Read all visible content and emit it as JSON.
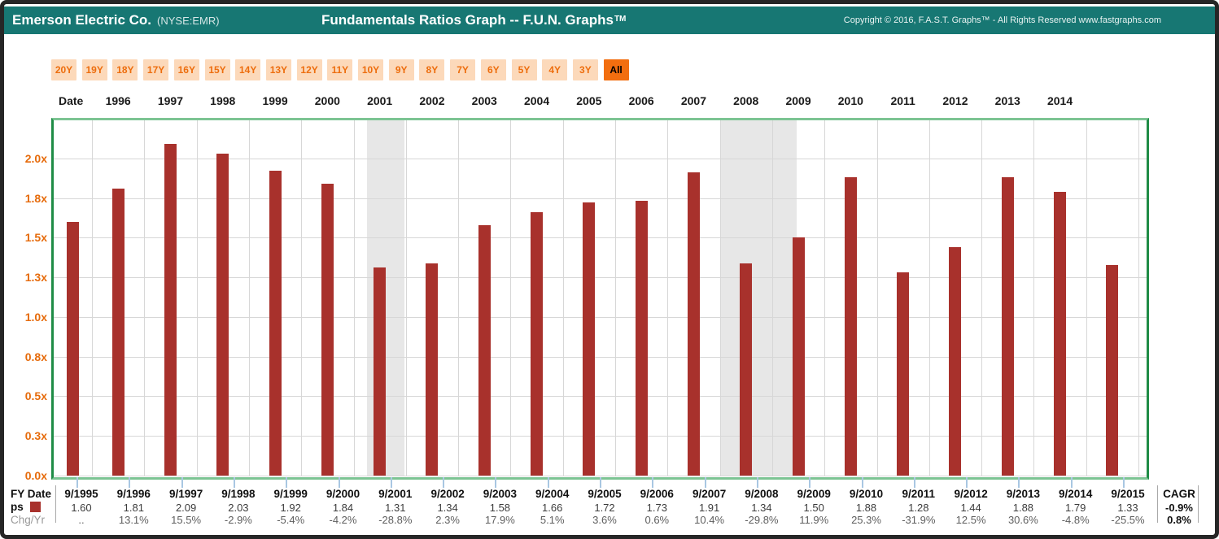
{
  "header": {
    "company": "Emerson Electric Co.",
    "ticker": "(NYSE:EMR)",
    "title": "Fundamentals Ratios Graph -- F.U.N. Graphs",
    "title_tm": "TM",
    "copyright": "Copyright © 2016, F.A.S.T. Graphs™ - All Rights Reserved www.fastgraphs.com"
  },
  "toolbar": {
    "buttons": [
      {
        "label": "20Y",
        "active": false
      },
      {
        "label": "19Y",
        "active": false
      },
      {
        "label": "18Y",
        "active": false
      },
      {
        "label": "17Y",
        "active": false
      },
      {
        "label": "16Y",
        "active": false
      },
      {
        "label": "15Y",
        "active": false
      },
      {
        "label": "14Y",
        "active": false
      },
      {
        "label": "13Y",
        "active": false
      },
      {
        "label": "12Y",
        "active": false
      },
      {
        "label": "11Y",
        "active": false
      },
      {
        "label": "10Y",
        "active": false
      },
      {
        "label": "9Y",
        "active": false
      },
      {
        "label": "8Y",
        "active": false
      },
      {
        "label": "7Y",
        "active": false
      },
      {
        "label": "6Y",
        "active": false
      },
      {
        "label": "5Y",
        "active": false
      },
      {
        "label": "4Y",
        "active": false
      },
      {
        "label": "3Y",
        "active": false
      },
      {
        "label": "All",
        "active": true
      }
    ],
    "inactive_bg": "#fcd9ba",
    "inactive_text": "#ed6d0d",
    "active_bg": "#f26e0f",
    "active_text": "#000000"
  },
  "date_row": {
    "label": "Date",
    "years": [
      "1996",
      "1997",
      "1998",
      "1999",
      "2000",
      "2001",
      "2002",
      "2003",
      "2004",
      "2005",
      "2006",
      "2007",
      "2008",
      "2009",
      "2010",
      "2011",
      "2012",
      "2013",
      "2014"
    ]
  },
  "chart_data": {
    "type": "bar",
    "title": "Fundamentals Ratios Graph -- F.U.N. Graphs (ps ratio by fiscal year)",
    "series_name": "ps",
    "categories": [
      "9/1995",
      "9/1996",
      "9/1997",
      "9/1998",
      "9/1999",
      "9/2000",
      "9/2001",
      "9/2002",
      "9/2003",
      "9/2004",
      "9/2005",
      "9/2006",
      "9/2007",
      "9/2008",
      "9/2009",
      "9/2010",
      "9/2011",
      "9/2012",
      "9/2013",
      "9/2014",
      "9/2015"
    ],
    "values": [
      1.6,
      1.81,
      2.09,
      2.03,
      1.92,
      1.84,
      1.31,
      1.34,
      1.58,
      1.66,
      1.72,
      1.73,
      1.91,
      1.34,
      1.5,
      1.88,
      1.28,
      1.44,
      1.88,
      1.79,
      1.33
    ],
    "values_display": [
      "1.60",
      "1.81",
      "2.09",
      "2.03",
      "1.92",
      "1.84",
      "1.31",
      "1.34",
      "1.58",
      "1.66",
      "1.72",
      "1.73",
      "1.91",
      "1.34",
      "1.50",
      "1.88",
      "1.28",
      "1.44",
      "1.88",
      "1.79",
      "1.33"
    ],
    "chg_yr": [
      "..",
      "13.1%",
      "15.5%",
      "-2.9%",
      "-5.4%",
      "-4.2%",
      "-28.8%",
      "2.3%",
      "17.9%",
      "5.1%",
      "3.6%",
      "0.6%",
      "10.4%",
      "-29.8%",
      "11.9%",
      "25.3%",
      "-31.9%",
      "12.5%",
      "30.6%",
      "-4.8%",
      "-25.5%"
    ],
    "y_tick_labels": [
      "0.0x",
      "0.3x",
      "0.5x",
      "0.8x",
      "1.0x",
      "1.3x",
      "1.5x",
      "1.8x",
      "2.0x"
    ],
    "y_tick_values": [
      0,
      0.25,
      0.5,
      0.75,
      1.0,
      1.25,
      1.5,
      1.75,
      2.0
    ],
    "ylim": [
      0,
      2.24
    ],
    "x_gridline_years": [
      1996,
      1997,
      1998,
      1999,
      2000,
      2001,
      2002,
      2003,
      2004,
      2005,
      2006,
      2007,
      2008,
      2009,
      2010,
      2011,
      2012,
      2013,
      2014,
      2015,
      2016
    ],
    "recession_bands": [
      [
        2001.25,
        2001.97
      ],
      [
        2008.0,
        2009.47
      ]
    ],
    "grid": "on",
    "legend_position": "bottom-left",
    "bar_color": "#a8312c",
    "band_color": "#e7e7e7",
    "axis_label_color": "#e66b0b"
  },
  "table": {
    "fy_label": "FY Date",
    "ps_label": "ps",
    "chg_label": "Chg/Yr",
    "cagr": {
      "label": "CAGR",
      "ps_value": "-0.9%",
      "chg_value": "0.8%"
    }
  }
}
